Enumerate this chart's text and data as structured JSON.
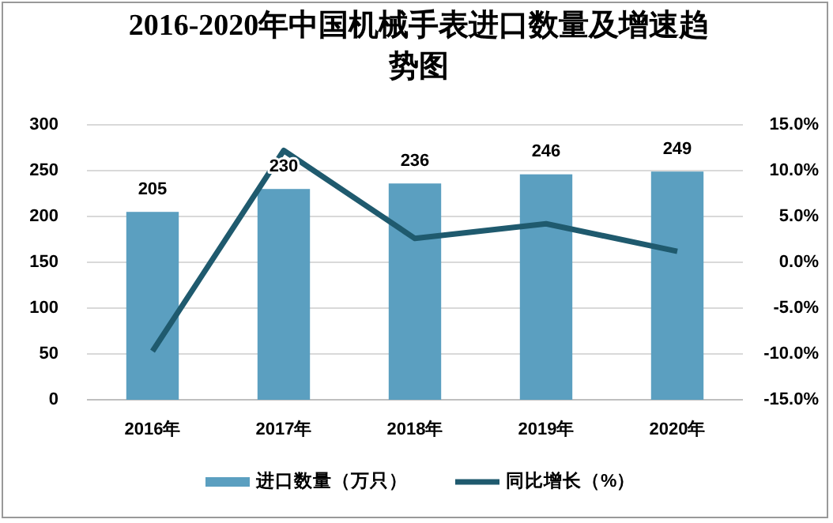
{
  "chart_data": {
    "type": "bar",
    "title": "2016-2020年中国机械手表进口数量及增速趋势图",
    "categories": [
      "2016年",
      "2017年",
      "2018年",
      "2019年",
      "2020年"
    ],
    "series": [
      {
        "name": "进口数量（万只）",
        "color": "#5b9fc0",
        "values": [
          205,
          230,
          236,
          246,
          249
        ],
        "value_labels": [
          "205",
          "230",
          "236",
          "246",
          "249"
        ]
      },
      {
        "name": "同比增长（%）",
        "type": "line",
        "axis": "y2",
        "color": "#1f5a6e",
        "values": [
          -9.7,
          12.2,
          2.6,
          4.2,
          1.2
        ]
      }
    ],
    "ylim": [
      0,
      300
    ],
    "yticks": [
      0,
      50,
      100,
      150,
      200,
      250,
      300
    ],
    "y2lim": [
      -15,
      15
    ],
    "y2ticks": [
      {
        "value": -15,
        "label": "-15.0%"
      },
      {
        "value": -10,
        "label": "-10.0%"
      },
      {
        "value": -5,
        "label": "-5.0%"
      },
      {
        "value": 0,
        "label": "0.0%"
      },
      {
        "value": 5,
        "label": "5.0%"
      },
      {
        "value": 10,
        "label": "10.0%"
      },
      {
        "value": 15,
        "label": "15.0%"
      }
    ],
    "grid": "y",
    "legend": "bottom"
  }
}
